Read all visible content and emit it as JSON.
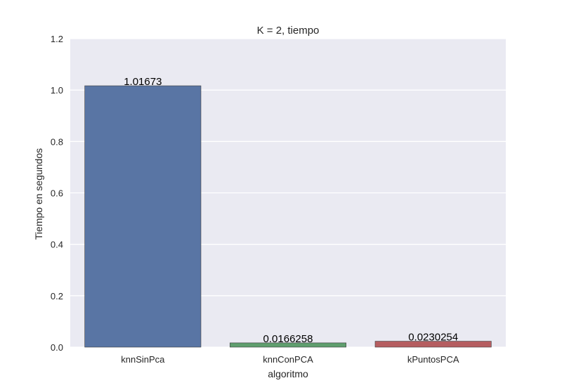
{
  "chart_data": {
    "type": "bar",
    "title": "K = 2, tiempo",
    "xlabel": "algoritmo",
    "ylabel": "Tiempo en segundos",
    "categories": [
      "knnSinPca",
      "knnConPCA",
      "kPuntosPCA"
    ],
    "values": [
      1.01673,
      0.0166258,
      0.0230254
    ],
    "data_labels": [
      "1.01673",
      "0.0166258",
      "0.0230254"
    ],
    "colors": [
      "#5975a4",
      "#5f9e6e",
      "#b55d60"
    ],
    "ylim": [
      0,
      1.2
    ],
    "yticks": [
      0.0,
      0.2,
      0.4,
      0.6,
      0.8,
      1.0,
      1.2
    ],
    "ytick_labels": [
      "0.0",
      "0.2",
      "0.4",
      "0.6",
      "0.8",
      "1.0",
      "1.2"
    ],
    "grid": true,
    "background_color": "#eaeaf2"
  }
}
